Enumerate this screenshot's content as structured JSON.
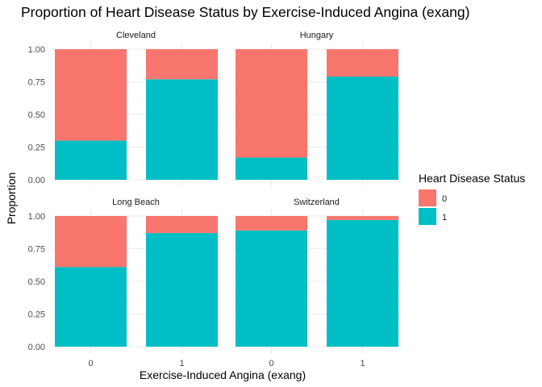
{
  "chart_data": {
    "type": "bar",
    "subtype": "stacked-proportion-facets",
    "title": "Proportion of Heart Disease Status by Exercise-Induced Angina (exang)",
    "xlabel": "Exercise-Induced Angina (exang)",
    "ylabel": "Proportion",
    "categories": [
      "0",
      "1"
    ],
    "y_ticks": [
      "0.00",
      "0.25",
      "0.50",
      "0.75",
      "1.00"
    ],
    "ylim": [
      0,
      1
    ],
    "grid": true,
    "legend": {
      "title": "Heart Disease Status",
      "placement": "right",
      "entries": [
        {
          "label": "0",
          "color": "#F8766D"
        },
        {
          "label": "1",
          "color": "#00BFC4"
        }
      ]
    },
    "colors": {
      "0": "#F8766D",
      "1": "#00BFC4"
    },
    "panels": [
      {
        "name": "Cleveland",
        "series": [
          {
            "name": "0",
            "values": [
              0.7,
              0.23
            ]
          },
          {
            "name": "1",
            "values": [
              0.3,
              0.77
            ]
          }
        ]
      },
      {
        "name": "Hungary",
        "series": [
          {
            "name": "0",
            "values": [
              0.83,
              0.21
            ]
          },
          {
            "name": "1",
            "values": [
              0.17,
              0.79
            ]
          }
        ]
      },
      {
        "name": "Long Beach",
        "series": [
          {
            "name": "0",
            "values": [
              0.39,
              0.13
            ]
          },
          {
            "name": "1",
            "values": [
              0.61,
              0.87
            ]
          }
        ]
      },
      {
        "name": "Switzerland",
        "series": [
          {
            "name": "0",
            "values": [
              0.11,
              0.03
            ]
          },
          {
            "name": "1",
            "values": [
              0.89,
              0.97
            ]
          }
        ]
      }
    ]
  }
}
